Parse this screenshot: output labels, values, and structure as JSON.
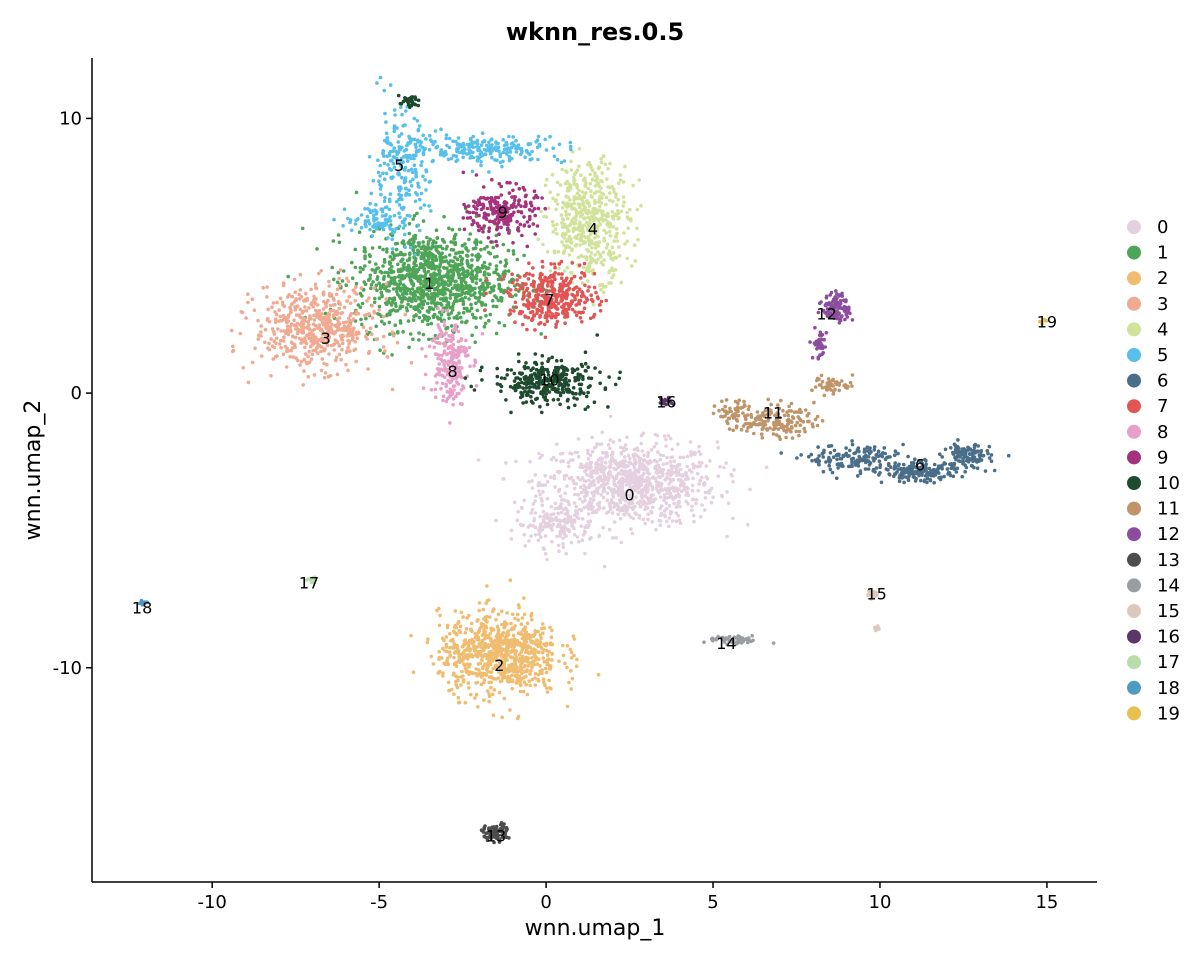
{
  "chart_data": {
    "type": "scatter",
    "title": "wknn_res.0.5",
    "xlabel": "wnn.umap_1",
    "ylabel": "wnn.umap_2",
    "xlim": [
      -13.6,
      16.5
    ],
    "ylim": [
      -17.8,
      12.2
    ],
    "x_ticks": [
      -10,
      -5,
      0,
      5,
      10,
      15
    ],
    "y_ticks": [
      -10,
      0,
      10
    ],
    "tick_labels_x": [
      "-10",
      "-5",
      "0",
      "5",
      "10",
      "15"
    ],
    "tick_labels_y": [
      "-10",
      "0",
      "10"
    ],
    "grid": false,
    "legend_position": "right",
    "clusters": [
      {
        "name": "0",
        "color": "#E4D0DF",
        "label_pos": [
          2.5,
          -3.7
        ],
        "blobs": [
          [
            2.5,
            -3.3,
            2.6,
            1.5,
            900
          ],
          [
            0.3,
            -4.8,
            1.2,
            0.8,
            150
          ]
        ]
      },
      {
        "name": "1",
        "color": "#4FA557",
        "label_pos": [
          -3.5,
          4.0
        ],
        "blobs": [
          [
            -3.4,
            4.1,
            2.3,
            1.8,
            1100
          ]
        ]
      },
      {
        "name": "2",
        "color": "#F0BC6F",
        "label_pos": [
          -1.4,
          -9.9
        ],
        "blobs": [
          [
            -1.4,
            -9.5,
            1.8,
            1.5,
            800
          ]
        ]
      },
      {
        "name": "3",
        "color": "#F0AA92",
        "label_pos": [
          -6.6,
          2.0
        ],
        "blobs": [
          [
            -6.9,
            2.4,
            1.8,
            1.5,
            550
          ]
        ]
      },
      {
        "name": "4",
        "color": "#D1E39A",
        "label_pos": [
          1.4,
          6.0
        ],
        "blobs": [
          [
            1.3,
            6.3,
            1.2,
            2.1,
            500
          ]
        ]
      },
      {
        "name": "5",
        "color": "#56BFEA",
        "label_pos": [
          -4.4,
          8.3
        ],
        "blobs": [
          [
            -4.4,
            8.0,
            0.9,
            2.3,
            220
          ],
          [
            -1.8,
            8.9,
            2.4,
            0.5,
            220
          ],
          [
            -5.0,
            6.3,
            1.0,
            0.5,
            80
          ]
        ]
      },
      {
        "name": "6",
        "color": "#4A6E89",
        "label_pos": [
          11.2,
          -2.6
        ],
        "blobs": [
          [
            9.3,
            -2.4,
            1.5,
            0.5,
            160
          ],
          [
            11.2,
            -2.9,
            1.1,
            0.35,
            160
          ],
          [
            12.6,
            -2.3,
            0.7,
            0.5,
            120
          ]
        ]
      },
      {
        "name": "7",
        "color": "#E15554",
        "label_pos": [
          0.1,
          3.4
        ],
        "blobs": [
          [
            0.2,
            3.5,
            1.3,
            1.0,
            380
          ]
        ]
      },
      {
        "name": "8",
        "color": "#E8A0C9",
        "label_pos": [
          -2.8,
          0.8
        ],
        "blobs": [
          [
            -2.9,
            1.2,
            0.6,
            1.6,
            200
          ]
        ]
      },
      {
        "name": "9",
        "color": "#A6327E",
        "label_pos": [
          -1.3,
          6.6
        ],
        "blobs": [
          [
            -1.3,
            6.6,
            1.0,
            0.9,
            230
          ]
        ]
      },
      {
        "name": "10",
        "color": "#1E4A2E",
        "label_pos": [
          0.1,
          0.5
        ],
        "blobs": [
          [
            0.0,
            0.4,
            1.6,
            0.8,
            320
          ],
          [
            -4.1,
            10.6,
            0.3,
            0.2,
            30
          ]
        ]
      },
      {
        "name": "11",
        "color": "#BE9468",
        "label_pos": [
          6.8,
          -0.7
        ],
        "blobs": [
          [
            6.8,
            -1.0,
            1.2,
            0.6,
            160
          ],
          [
            8.6,
            0.3,
            0.6,
            0.3,
            50
          ],
          [
            5.6,
            -0.6,
            0.5,
            0.4,
            40
          ]
        ]
      },
      {
        "name": "12",
        "color": "#8C4D9E",
        "label_pos": [
          8.4,
          2.9
        ],
        "blobs": [
          [
            8.7,
            3.1,
            0.4,
            0.5,
            110
          ],
          [
            8.2,
            1.8,
            0.2,
            0.6,
            40
          ]
        ]
      },
      {
        "name": "13",
        "color": "#4D4D4D",
        "label_pos": [
          -1.5,
          -16.1
        ],
        "blobs": [
          [
            -1.5,
            -16.0,
            0.4,
            0.3,
            80
          ]
        ]
      },
      {
        "name": "14",
        "color": "#9A9EA3",
        "label_pos": [
          5.4,
          -9.1
        ],
        "blobs": [
          [
            5.6,
            -9.0,
            0.8,
            0.15,
            60
          ]
        ]
      },
      {
        "name": "15",
        "color": "#DCC9BE",
        "label_pos": [
          9.9,
          -7.3
        ],
        "blobs": [
          [
            9.8,
            -7.3,
            0.15,
            0.2,
            20
          ],
          [
            9.9,
            -8.6,
            0.1,
            0.1,
            8
          ]
        ]
      },
      {
        "name": "16",
        "color": "#5A3768",
        "label_pos": [
          3.6,
          -0.3
        ],
        "blobs": [
          [
            3.6,
            -0.3,
            0.2,
            0.2,
            15
          ]
        ]
      },
      {
        "name": "17",
        "color": "#B8DCAC",
        "label_pos": [
          -7.1,
          -6.9
        ],
        "blobs": [
          [
            -7.0,
            -6.8,
            0.15,
            0.15,
            12
          ]
        ]
      },
      {
        "name": "18",
        "color": "#4F9BC4",
        "label_pos": [
          -12.1,
          -7.8
        ],
        "blobs": [
          [
            -12.1,
            -7.7,
            0.15,
            0.15,
            12
          ]
        ]
      },
      {
        "name": "19",
        "color": "#E6C14E",
        "label_pos": [
          15.0,
          2.6
        ],
        "blobs": [
          [
            14.9,
            2.6,
            0.1,
            0.1,
            6
          ]
        ]
      }
    ]
  }
}
